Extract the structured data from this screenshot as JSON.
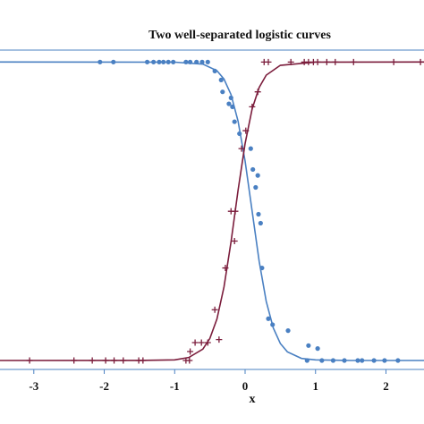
{
  "chart_data": {
    "type": "scatter",
    "title": "Two well-separated logistic curves",
    "x_label": "x",
    "xlim": [
      -3.48,
      2.54
    ],
    "ylim": [
      -0.03,
      1.04
    ],
    "xticks": [
      -3,
      -2,
      -1,
      0,
      1,
      2
    ],
    "series": [
      {
        "type": "line",
        "color": "#4a80c2",
        "x": [
          -3.48,
          -1,
          -0.6,
          -0.4,
          -0.3,
          -0.2,
          -0.1,
          0,
          0.1,
          0.2,
          0.3,
          0.4,
          0.5,
          0.6,
          0.8,
          1,
          1.5,
          2.54
        ],
        "values": [
          1,
          0.9995,
          0.993,
          0.971,
          0.943,
          0.891,
          0.802,
          0.668,
          0.5,
          0.332,
          0.198,
          0.109,
          0.057,
          0.029,
          0.007,
          0.002,
          0,
          0
        ]
      },
      {
        "type": "line",
        "color": "#7b1d3c",
        "x": [
          -3.48,
          -1.5,
          -1,
          -0.8,
          -0.6,
          -0.5,
          -0.4,
          -0.3,
          -0.2,
          -0.1,
          0,
          0.1,
          0.2,
          0.3,
          0.5,
          1,
          2.54
        ],
        "values": [
          0,
          0.0001,
          0.002,
          0.01,
          0.038,
          0.074,
          0.139,
          0.246,
          0.397,
          0.57,
          0.727,
          0.843,
          0.915,
          0.956,
          0.989,
          0.9997,
          1
        ]
      },
      {
        "type": "scatter",
        "marker": "circle",
        "color": "#4a80c2",
        "x": [
          -2.06,
          -1.87,
          -1.39,
          -1.3,
          -1.22,
          -1.16,
          -1.09,
          -1.02,
          -0.84,
          -0.78,
          -0.69,
          -0.61,
          -0.53,
          -0.43,
          -0.34,
          -0.32,
          -0.23,
          -0.2,
          -0.18,
          -0.15,
          -0.08,
          0.08,
          0.11,
          0.15,
          0.18,
          0.19,
          0.22,
          0.24,
          0.33,
          0.39,
          0.61,
          0.88,
          0.9,
          1.03,
          1.09,
          1.25,
          1.41,
          1.6,
          1.66,
          1.83,
          1.98,
          2.17
        ],
        "values": [
          1,
          1,
          1,
          1,
          1,
          1,
          1,
          1,
          1,
          1,
          1,
          1,
          1,
          0.97,
          0.94,
          0.9,
          0.86,
          0.88,
          0.85,
          0.8,
          0.76,
          0.71,
          0.64,
          0.58,
          0.62,
          0.49,
          0.46,
          0.31,
          0.14,
          0.12,
          0.1,
          0,
          0.05,
          0.04,
          0,
          0,
          0,
          0,
          0,
          0,
          0,
          0
        ]
      },
      {
        "type": "scatter",
        "marker": "plus",
        "color": "#7b1d3c",
        "x": [
          -3.06,
          -2.43,
          -2.17,
          -1.98,
          -1.86,
          -1.73,
          -1.51,
          -1.45,
          -0.84,
          -0.79,
          -0.78,
          -0.71,
          -0.62,
          -0.53,
          -0.43,
          -0.37,
          -0.28,
          -0.2,
          -0.15,
          -0.14,
          -0.05,
          0.01,
          0.1,
          0.18,
          0.27,
          0.33,
          0.65,
          0.84,
          0.9,
          0.97,
          1.03,
          1.16,
          1.28,
          1.54,
          2.11,
          2.49
        ],
        "values": [
          0,
          0,
          0,
          0,
          0,
          0,
          0,
          0,
          0,
          0,
          0.03,
          0.06,
          0.06,
          0.06,
          0.17,
          0.07,
          0.31,
          0.5,
          0.4,
          0.5,
          0.71,
          0.77,
          0.85,
          0.9,
          1,
          1,
          1,
          1,
          1,
          1,
          1,
          1,
          1,
          1,
          1,
          1
        ]
      }
    ]
  }
}
